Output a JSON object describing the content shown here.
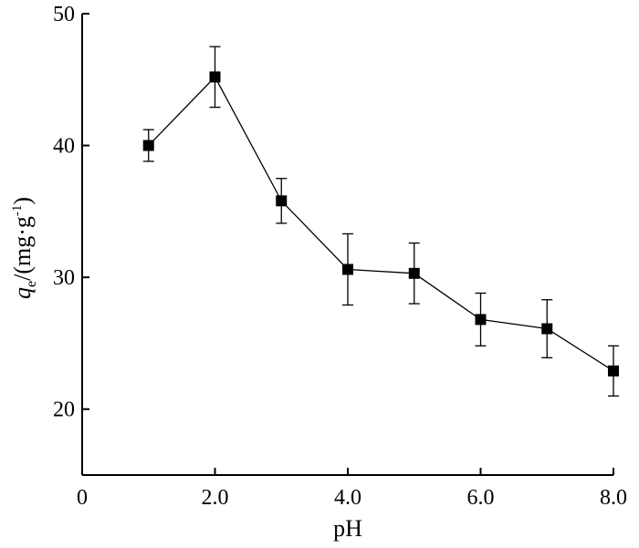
{
  "chart_data": {
    "type": "scatter",
    "title": "",
    "xlabel": "pH",
    "ylabel": {
      "main": "q",
      "sub": "e",
      "unit_prefix": "/(mg·g",
      "unit_sup": "-1",
      "unit_suffix": ")"
    },
    "xlim": [
      0,
      8
    ],
    "ylim": [
      15,
      50
    ],
    "x_ticks": [
      {
        "value": 0,
        "label": "0"
      },
      {
        "value": 2,
        "label": "2.0"
      },
      {
        "value": 4,
        "label": "4.0"
      },
      {
        "value": 6,
        "label": "6.0"
      },
      {
        "value": 8,
        "label": "8.0"
      }
    ],
    "y_ticks": [
      {
        "value": 20,
        "label": "20"
      },
      {
        "value": 30,
        "label": "30"
      },
      {
        "value": 40,
        "label": "40"
      },
      {
        "value": 50,
        "label": "50"
      }
    ],
    "grid": false,
    "connected": true,
    "marker": "square",
    "series": [
      {
        "x": [
          1,
          2,
          3,
          4,
          5,
          6,
          7,
          8
        ],
        "y": [
          40.0,
          45.2,
          35.8,
          30.6,
          30.3,
          26.8,
          26.1,
          22.9
        ],
        "error": [
          1.2,
          2.3,
          1.7,
          2.7,
          2.3,
          2.0,
          2.2,
          1.9
        ]
      }
    ]
  }
}
